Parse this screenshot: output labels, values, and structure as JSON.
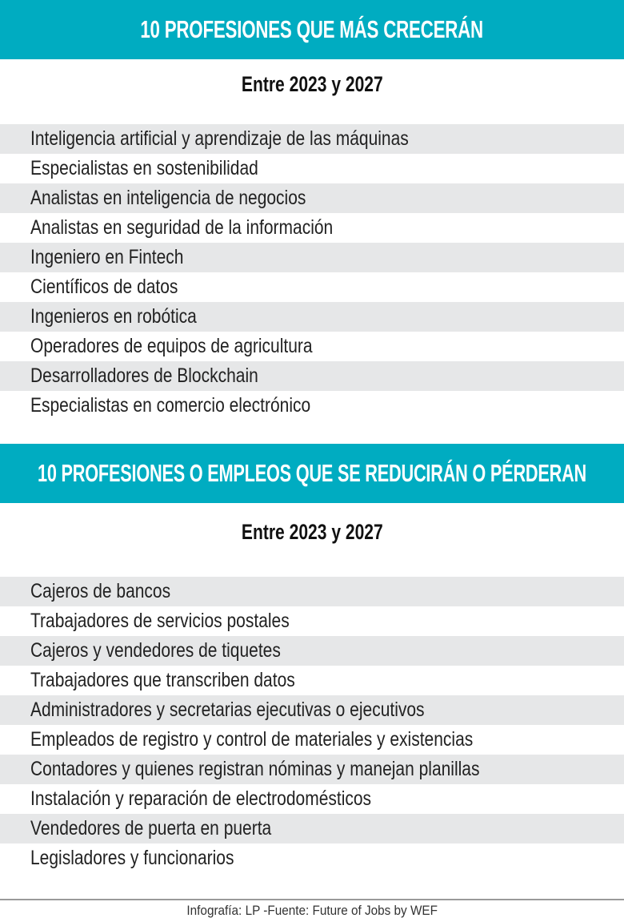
{
  "colors": {
    "accent": "#00acc1",
    "row_alt": "#e6e7e8"
  },
  "section1": {
    "title": "10 PROFESIONES QUE MÁS CRECERÁN",
    "subtitle": "Entre 2023 y 2027",
    "items": [
      "Inteligencia artificial y aprendizaje de las máquinas",
      "Especialistas en sostenibilidad",
      "Analistas en inteligencia de negocios",
      "Analistas en seguridad de la información",
      "Ingeniero en Fintech",
      "Científicos de datos",
      "Ingenieros en robótica",
      "Operadores de equipos de agricultura",
      "Desarrolladores de Blockchain",
      "Especialistas en comercio electrónico"
    ]
  },
  "section2": {
    "title": "10 PROFESIONES O EMPLEOS QUE SE REDUCIRÁN O PÉRDERAN",
    "subtitle": "Entre 2023 y 2027",
    "items": [
      "Cajeros de bancos",
      "Trabajadores de servicios postales",
      "Cajeros y vendedores de tiquetes",
      "Trabajadores que transcriben datos",
      "Administradores y secretarias ejecutivas o ejecutivos",
      "Empleados de registro y control de materiales y existencias",
      "Contadores y quienes registran nóminas y manejan planillas",
      "Instalación y reparación de electrodomésticos",
      "Vendedores de puerta en puerta",
      "Legisladores y funcionarios"
    ]
  },
  "footer": {
    "credit": "Infografía: LP -Fuente: Future of Jobs by WEF"
  }
}
